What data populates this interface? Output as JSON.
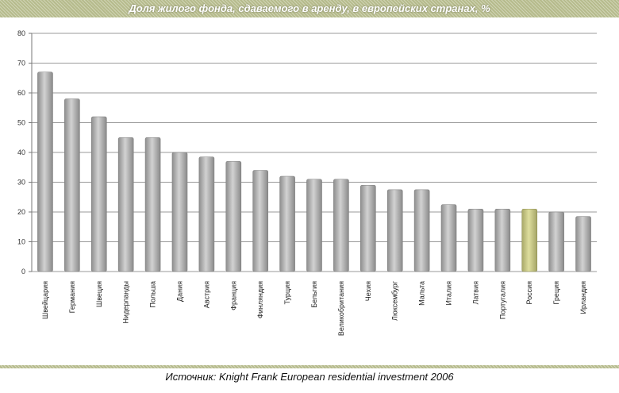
{
  "title": "Доля жилого фонда, сдаваемого в аренду, в европейских странах, %",
  "source": "Источник: Knight Frank European residential investment 2006",
  "colors": {
    "bar": "#a8a8a8",
    "bar_highlight": "#cccc88",
    "grid": "#9a9a9a"
  },
  "chart_data": {
    "type": "bar",
    "title": "Доля жилого фонда, сдаваемого в аренду, в европейских странах, %",
    "xlabel": "",
    "ylabel": "",
    "ylim": [
      0,
      80
    ],
    "yticks": [
      0,
      10,
      20,
      30,
      40,
      50,
      60,
      70,
      80
    ],
    "grid": true,
    "categories": [
      "Швейцария",
      "Германия",
      "Швеция",
      "Нидерланды",
      "Польша",
      "Дания",
      "Австрия",
      "Франция",
      "Финляндия",
      "Турция",
      "Бельгия",
      "Великобритания",
      "Чехия",
      "Люксембург",
      "Мальта",
      "Италия",
      "Латвия",
      "Португалия",
      "Россия",
      "Греция",
      "Ирландия"
    ],
    "values": [
      67,
      58,
      52,
      45,
      45,
      40,
      38.5,
      37,
      34,
      32,
      31,
      31,
      29,
      27.5,
      27.5,
      22.5,
      21,
      21,
      21,
      20,
      18.5
    ],
    "highlight": "Россия"
  }
}
